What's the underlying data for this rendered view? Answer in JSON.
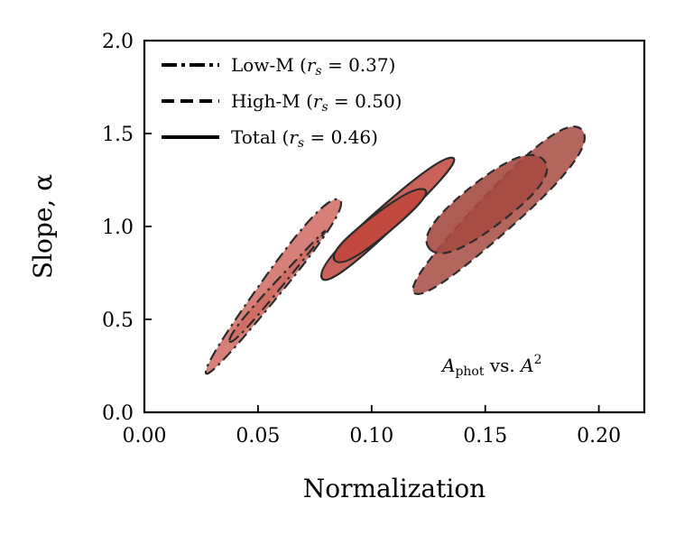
{
  "chart_data": {
    "type": "contour-ellipses",
    "title": "",
    "xlabel": "Normalization",
    "ylabel": "Slope, α",
    "xlim": [
      0.0,
      0.22
    ],
    "ylim": [
      0.0,
      2.0
    ],
    "x_ticks": [
      0.0,
      0.05,
      0.1,
      0.15,
      0.2
    ],
    "x_tick_labels": [
      "0.00",
      "0.05",
      "0.10",
      "0.15",
      "0.20"
    ],
    "y_ticks": [
      0.0,
      0.5,
      1.0,
      1.5,
      2.0
    ],
    "y_tick_labels": [
      "0.0",
      "0.5",
      "1.0",
      "1.5",
      "2.0"
    ],
    "annotation": {
      "main": "A",
      "subscript": "phot",
      "middle": " vs. ",
      "main2": "A",
      "superscript": "2"
    },
    "legend": {
      "location": "upper-left",
      "entries": [
        {
          "label": "Low-M",
          "rs_value": "0.37",
          "linestyle": "dashdot"
        },
        {
          "label": "High-M",
          "rs_value": "0.50",
          "linestyle": "dashed"
        },
        {
          "label": "Total",
          "rs_value": "0.46",
          "linestyle": "solid"
        }
      ]
    },
    "series": [
      {
        "name": "Low-M",
        "linestyle": "dashdot",
        "fill": "#cf6a62",
        "outer": {
          "cx": 0.053,
          "cy": 0.66,
          "corners": [
            [
              0.027,
              0.15
            ],
            [
              0.092,
              1.12
            ],
            [
              0.079,
              1.17
            ],
            [
              0.027,
              0.28
            ]
          ]
        },
        "inner": {
          "cx": 0.058,
          "cy": 0.66,
          "corners": [
            [
              0.038,
              0.34
            ],
            [
              0.08,
              0.97
            ],
            [
              0.079,
              0.98
            ],
            [
              0.037,
              0.43
            ]
          ]
        }
      },
      {
        "name": "Total",
        "linestyle": "solid",
        "fill": "#c0473d",
        "outer": {
          "cx": 0.11,
          "cy": 1.04,
          "corners": [
            [
              0.08,
              0.65
            ],
            [
              0.141,
              1.36
            ],
            [
              0.13,
              1.38
            ],
            [
              0.076,
              0.8
            ]
          ]
        },
        "inner": {
          "cx": 0.106,
          "cy": 0.98,
          "corners": [
            [
              0.088,
              0.77
            ],
            [
              0.128,
              1.18
            ],
            [
              0.118,
              1.22
            ],
            [
              0.08,
              0.86
            ]
          ]
        }
      },
      {
        "name": "High-M",
        "linestyle": "dashed",
        "fill": "#a64a42",
        "outer": {
          "cx": 0.16,
          "cy": 1.08,
          "corners": [
            [
              0.125,
              0.6
            ],
            [
              0.2,
              1.42
            ],
            [
              0.185,
              1.62
            ],
            [
              0.113,
              0.68
            ]
          ]
        },
        "inner": {
          "cx": 0.151,
          "cy": 1.12,
          "corners": [
            [
              0.132,
              0.79
            ],
            [
              0.183,
              1.27
            ],
            [
              0.168,
              1.45
            ],
            [
              0.119,
              0.97
            ]
          ]
        }
      }
    ]
  }
}
